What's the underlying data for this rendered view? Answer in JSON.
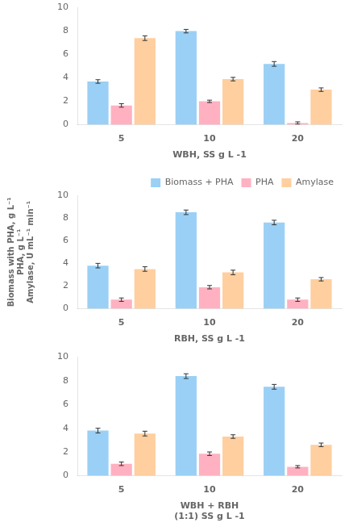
{
  "chart_data": [
    {
      "type": "bar",
      "categories": [
        "5",
        "10",
        "20"
      ],
      "x_label": "WBH, SS g L -1",
      "ylim": [
        0,
        10
      ],
      "yticks": [
        0,
        2,
        4,
        6,
        8,
        10
      ],
      "grid": false,
      "series": [
        {
          "name": "Biomass + PHA",
          "values": [
            3.7,
            8.0,
            5.2
          ],
          "errors": [
            0.15,
            0.15,
            0.2
          ]
        },
        {
          "name": "PHA",
          "values": [
            1.65,
            2.0,
            0.15
          ],
          "errors": [
            0.15,
            0.1,
            0.1
          ]
        },
        {
          "name": "Amylase",
          "values": [
            7.4,
            3.9,
            3.0
          ],
          "errors": [
            0.2,
            0.15,
            0.15
          ]
        }
      ]
    },
    {
      "type": "bar",
      "categories": [
        "5",
        "10",
        "20"
      ],
      "x_label": "RBH, SS g L -1",
      "y_label": [
        "Biomass with PHA, g L⁻¹",
        "PHA, g L⁻¹",
        "Amylase, U mL⁻¹ min⁻¹"
      ],
      "ylim": [
        0,
        10
      ],
      "yticks": [
        0,
        2,
        4,
        6,
        8,
        10
      ],
      "grid": false,
      "legend": "upper right",
      "series": [
        {
          "name": "Biomass + PHA",
          "values": [
            3.8,
            8.5,
            7.6
          ],
          "errors": [
            0.2,
            0.2,
            0.2
          ]
        },
        {
          "name": "PHA",
          "values": [
            0.8,
            1.9,
            0.8
          ],
          "errors": [
            0.15,
            0.15,
            0.15
          ]
        },
        {
          "name": "Amylase",
          "values": [
            3.5,
            3.2,
            2.6
          ],
          "errors": [
            0.2,
            0.2,
            0.15
          ]
        }
      ]
    },
    {
      "type": "bar",
      "categories": [
        "5",
        "10",
        "20"
      ],
      "x_label": [
        "WBH + RBH",
        "(1:1) SS g L -1"
      ],
      "ylim": [
        0,
        10
      ],
      "yticks": [
        0,
        2,
        4,
        6,
        8,
        10
      ],
      "grid": false,
      "series": [
        {
          "name": "Biomass + PHA",
          "values": [
            3.8,
            8.4,
            7.5
          ],
          "errors": [
            0.2,
            0.2,
            0.2
          ]
        },
        {
          "name": "PHA",
          "values": [
            1.0,
            1.85,
            0.75
          ],
          "errors": [
            0.15,
            0.15,
            0.1
          ]
        },
        {
          "name": "Amylase",
          "values": [
            3.55,
            3.3,
            2.6
          ],
          "errors": [
            0.2,
            0.15,
            0.15
          ]
        }
      ]
    }
  ]
}
